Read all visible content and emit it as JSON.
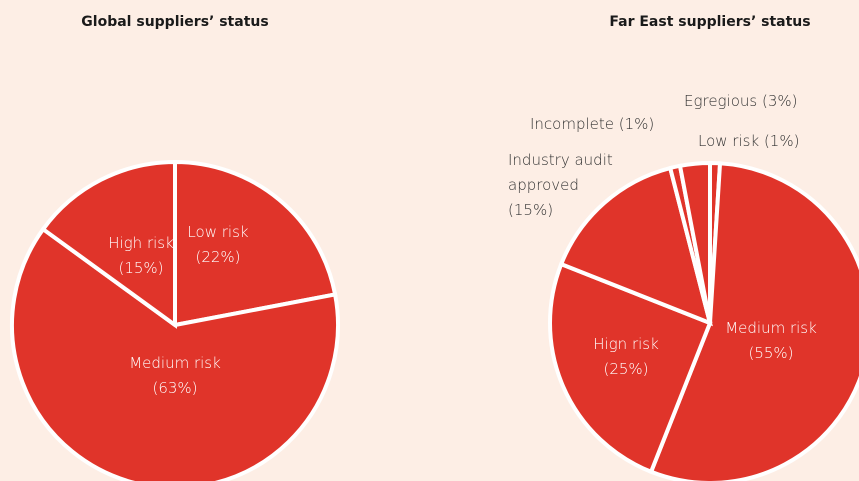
{
  "chart_data": [
    {
      "type": "pie",
      "title": "Global suppliers’ status",
      "categories": [
        "Low risk",
        "Medium risk",
        "High risk"
      ],
      "values": [
        22,
        63,
        15
      ],
      "value_labels": [
        "(22%)",
        "(63%)",
        "(15%)"
      ],
      "color": "#e0342a"
    },
    {
      "type": "pie",
      "title": "Far East suppliers’ status",
      "categories": [
        "Low risk",
        "Medium risk",
        "Hign risk",
        "Industry audit approved",
        "Incomplete",
        "Egregious"
      ],
      "values": [
        1,
        55,
        25,
        15,
        1,
        3
      ],
      "value_labels": [
        "(1%)",
        "(55%)",
        "(25%)",
        "(15%)",
        "(1%)",
        "(3%)"
      ],
      "color": "#e0342a"
    }
  ]
}
